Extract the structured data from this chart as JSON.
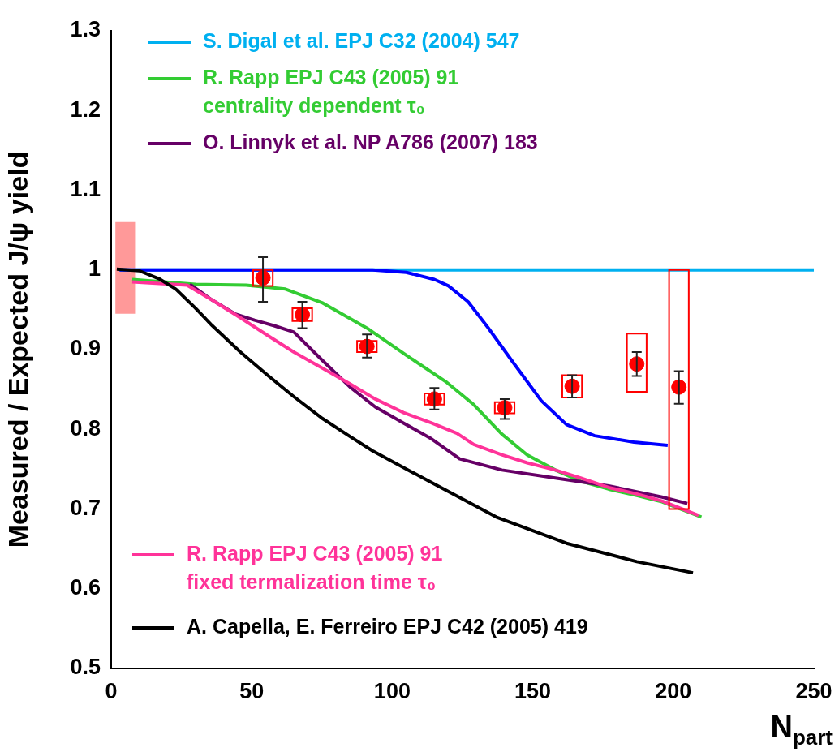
{
  "chart_data": {
    "type": "line",
    "xlabel": "N$_{part}$",
    "ylabel": "Measured / Expected J/ψ yield",
    "xlim": [
      0,
      250
    ],
    "xticks": [
      0,
      50,
      100,
      150,
      200,
      250
    ],
    "ylim": [
      0.5,
      1.3
    ],
    "yticks": [
      0.5,
      0.6,
      0.7,
      0.8,
      0.9,
      1,
      1.1,
      1.2,
      1.3
    ],
    "grid": false,
    "legend": "top left",
    "marker": "none",
    "line_style": "solid",
    "series": [
      {
        "name": "S. Digal et al. EPJ C32 (2004) 547",
        "color": "#00b0f0",
        "x": [
          3,
          250
        ],
        "values": [
          1,
          1
        ]
      },
      {
        "color": "#0000ff",
        "x": [
          3,
          93,
          105,
          115,
          120,
          127,
          134,
          143,
          153,
          162,
          172,
          186,
          198
        ],
        "values": [
          1,
          1,
          0.997,
          0.988,
          0.98,
          0.96,
          0.928,
          0.884,
          0.836,
          0.806,
          0.792,
          0.784,
          0.78
        ]
      },
      {
        "name": "R. Rapp EPJ C43 (2005) 91\ncentrality dependent τ₀",
        "color": "#33cc33",
        "x": [
          7.5,
          30,
          48,
          62,
          75,
          91,
          105,
          119,
          129,
          139,
          148,
          158,
          167,
          177,
          187,
          196,
          210
        ],
        "values": [
          0.988,
          0.982,
          0.981,
          0.976,
          0.959,
          0.927,
          0.893,
          0.86,
          0.831,
          0.794,
          0.768,
          0.749,
          0.735,
          0.725,
          0.717,
          0.709,
          0.69
        ]
      },
      {
        "name": "O. Linnyk et al. NP A786 (2007) 183",
        "color": "#660066",
        "x": [
          28,
          36,
          44,
          51,
          58,
          65,
          75,
          85,
          94,
          104,
          114,
          124,
          139,
          158,
          177,
          196,
          205
        ],
        "values": [
          0.982,
          0.962,
          0.945,
          0.937,
          0.93,
          0.922,
          0.887,
          0.853,
          0.828,
          0.808,
          0.788,
          0.763,
          0.749,
          0.739,
          0.729,
          0.715,
          0.707
        ]
      },
      {
        "name": "R. Rapp EPJ C43 (2005) 91\nfixed termalization time τ₀",
        "color": "#ff3399",
        "x": [
          7.5,
          27,
          36,
          46,
          56,
          65,
          75,
          85,
          94,
          104,
          114,
          123,
          129,
          139,
          148,
          158,
          167,
          177,
          187,
          196,
          209
        ],
        "values": [
          0.985,
          0.981,
          0.962,
          0.94,
          0.917,
          0.897,
          0.877,
          0.857,
          0.838,
          0.821,
          0.808,
          0.795,
          0.781,
          0.768,
          0.758,
          0.749,
          0.739,
          0.727,
          0.719,
          0.71,
          0.692
        ]
      },
      {
        "name": "A. Capella, E. Ferreiro EPJ C42 (2005) 419",
        "color": "#000000",
        "x": [
          2,
          10,
          17,
          23,
          30,
          36,
          46,
          56,
          65,
          75,
          85,
          93,
          113,
          137,
          162,
          187,
          207
        ],
        "values": [
          1.001,
          0.999,
          0.989,
          0.976,
          0.952,
          0.93,
          0.897,
          0.867,
          0.841,
          0.814,
          0.791,
          0.773,
          0.735,
          0.69,
          0.657,
          0.634,
          0.62
        ]
      },
      {
        "color": "#ff0000",
        "type": "bar",
        "x": [
          54,
          68,
          91,
          115,
          140,
          164,
          187,
          202
        ],
        "base": [
          0.98,
          0.936,
          0.897,
          0.831,
          0.82,
          0.84,
          0.847,
          0.7
        ],
        "values": [
          0.02,
          0.016,
          0.014,
          0.014,
          0.014,
          0.028,
          0.073,
          0.3
        ]
      },
      {
        "color": "#ff9999",
        "type": "bar",
        "x": [
          5
        ],
        "base": [
          0.945
        ],
        "values": [
          0.115
        ]
      },
      {
        "color": "#ff0000",
        "type": "scatter",
        "marker": "circle",
        "x": [
          54,
          68,
          91,
          115,
          140,
          164,
          187,
          202
        ],
        "values": [
          0.99,
          0.944,
          0.904,
          0.838,
          0.827,
          0.854,
          0.882,
          0.853
        ],
        "errors": [
          [
            0.96,
            1.016
          ],
          [
            0.927,
            0.96
          ],
          [
            0.89,
            0.919
          ],
          [
            0.825,
            0.852
          ],
          [
            0.813,
            0.838
          ],
          [
            0.84,
            0.868
          ],
          [
            0.867,
            0.897
          ],
          [
            0.832,
            0.873
          ]
        ]
      }
    ]
  }
}
